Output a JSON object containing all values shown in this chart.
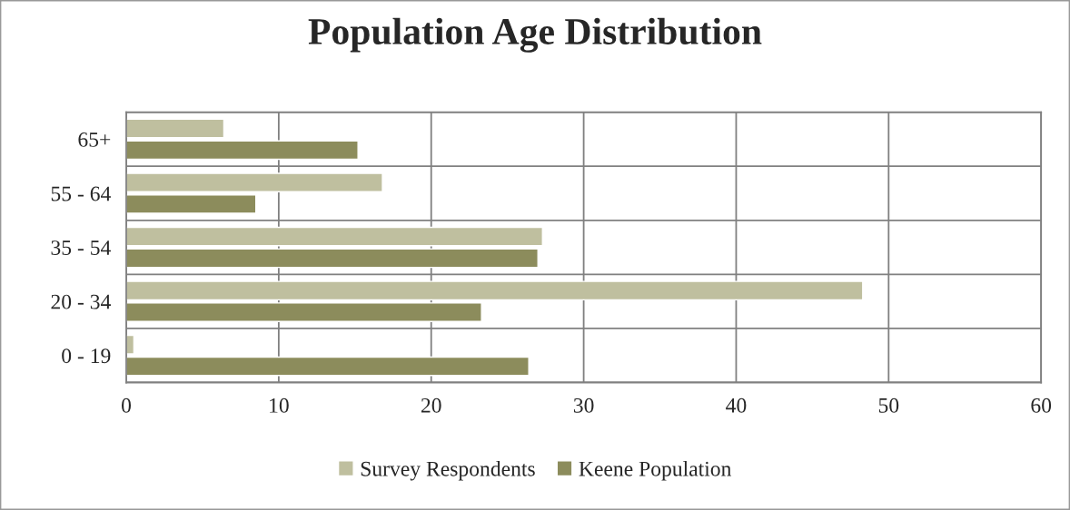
{
  "chart_data": {
    "type": "bar",
    "orientation": "horizontal",
    "title": "Population Age Distribution",
    "categories": [
      "65+",
      "55 - 64",
      "35 - 54",
      "20 - 34",
      "0 - 19"
    ],
    "series": [
      {
        "name": "Survey Respondents",
        "color": "#bfbf9f",
        "values": [
          6.4,
          16.8,
          27.3,
          48.3,
          0.5
        ]
      },
      {
        "name": "Keene Population",
        "color": "#8c8c5c",
        "values": [
          15.2,
          8.5,
          27.0,
          23.3,
          26.4
        ]
      }
    ],
    "xlim": [
      0,
      60
    ],
    "xticks": [
      0,
      10,
      20,
      30,
      40,
      50,
      60
    ],
    "grid": true,
    "legend": "bottom"
  }
}
